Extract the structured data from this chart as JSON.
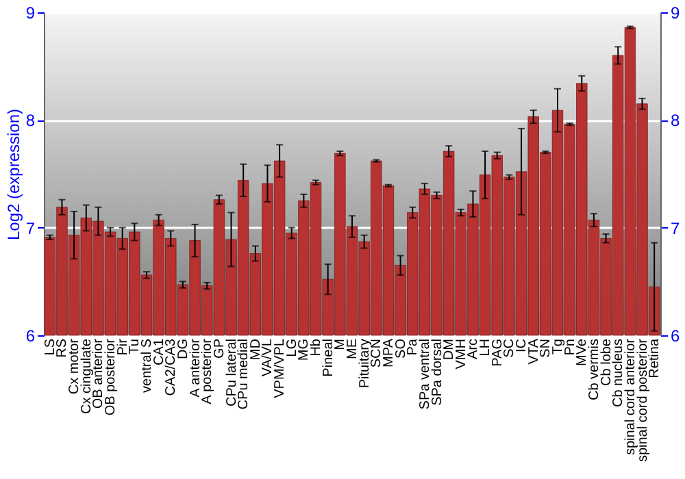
{
  "chart_data": {
    "type": "bar",
    "ylabel": "Log2 (expression)",
    "categories": [
      "LS",
      "RS",
      "Cx motor",
      "Cx cingulate",
      "OB anterior",
      "OB posterior",
      "Pir",
      "Tu",
      "ventral S",
      "CA1",
      "CA2/CA3",
      "DG",
      "A anterior",
      "A posterior",
      "GP",
      "CPu lateral",
      "CPu medial",
      "MD",
      "VA/VL",
      "VPM/VPL",
      "LG",
      "MG",
      "Hb",
      "Pineal",
      "M",
      "ME",
      "Pituitary",
      "SCN",
      "MPA",
      "SO",
      "Pa",
      "SPa ventral",
      "SPa dorsal",
      "DM",
      "VMH",
      "Arc",
      "LH",
      "PAG",
      "SC",
      "IC",
      "VTA",
      "SN",
      "Tg",
      "Pn",
      "MVe",
      "Cb vermis",
      "Cb lobe",
      "Cb nucleus",
      "spinal cord anterior",
      "spinal cord posterior",
      "Retina"
    ],
    "values": [
      6.91,
      7.19,
      6.93,
      7.09,
      7.06,
      6.96,
      6.9,
      6.96,
      6.56,
      7.07,
      6.9,
      6.47,
      6.88,
      6.46,
      7.26,
      6.89,
      7.44,
      6.76,
      7.41,
      7.62,
      6.95,
      7.25,
      7.42,
      6.52,
      7.69,
      7.01,
      6.87,
      7.62,
      7.39,
      6.65,
      7.14,
      7.36,
      7.3,
      7.71,
      7.14,
      7.22,
      7.49,
      7.67,
      7.47,
      7.52,
      8.03,
      7.7,
      8.09,
      7.96,
      8.34,
      7.07,
      6.9,
      8.6,
      8.86,
      8.15,
      6.45
    ],
    "errors": [
      0.02,
      0.07,
      0.22,
      0.12,
      0.13,
      0.04,
      0.1,
      0.08,
      0.03,
      0.05,
      0.07,
      0.03,
      0.15,
      0.03,
      0.04,
      0.25,
      0.15,
      0.07,
      0.17,
      0.15,
      0.05,
      0.06,
      0.02,
      0.14,
      0.02,
      0.1,
      0.06,
      0.01,
      0.01,
      0.09,
      0.05,
      0.05,
      0.03,
      0.05,
      0.03,
      0.12,
      0.22,
      0.03,
      0.02,
      0.4,
      0.06,
      0.01,
      0.2,
      0.01,
      0.07,
      0.06,
      0.04,
      0.08,
      0.01,
      0.05,
      0.41
    ],
    "color": "#b83232",
    "ylim": [
      6,
      9
    ],
    "yticks": [
      6,
      7,
      8,
      9
    ],
    "y2lim": [
      6,
      9
    ],
    "y2ticks": [
      6,
      7,
      8,
      9
    ],
    "grid": "y"
  }
}
